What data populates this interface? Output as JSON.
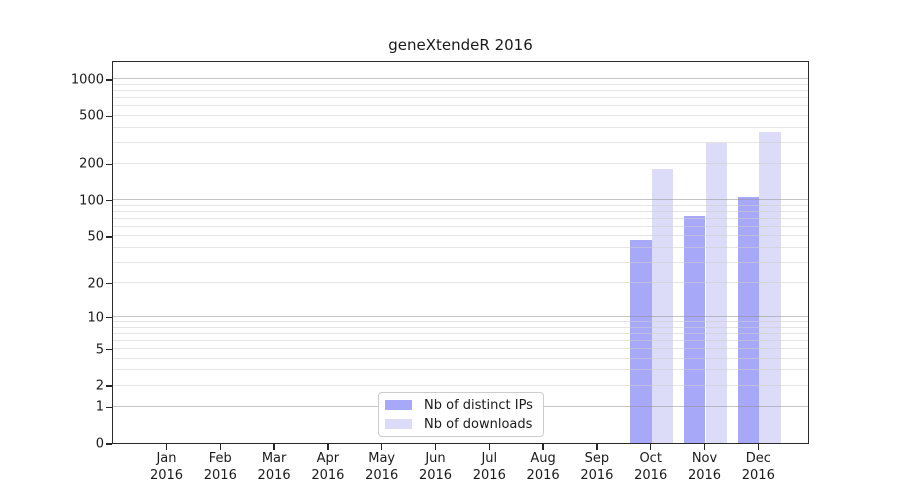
{
  "title": "geneXtendeR 2016",
  "chart_data": {
    "type": "bar",
    "title": "geneXtendeR 2016",
    "categories": [
      "Jan",
      "Feb",
      "Mar",
      "Apr",
      "May",
      "Jun",
      "Jul",
      "Aug",
      "Sep",
      "Oct",
      "Nov",
      "Dec"
    ],
    "year_label": "2016",
    "series": [
      {
        "name": "Nb of distinct IPs",
        "color": "#a8a8f8",
        "values": [
          0,
          0,
          0,
          0,
          0,
          0,
          0,
          0,
          0,
          46,
          73,
          105
        ]
      },
      {
        "name": "Nb of downloads",
        "color": "#dcdcf8",
        "values": [
          0,
          0,
          0,
          0,
          0,
          0,
          0,
          0,
          0,
          181,
          296,
          366
        ]
      }
    ],
    "y_ticks": [
      1000,
      500,
      200,
      100,
      50,
      20,
      10,
      5,
      2,
      1,
      0
    ],
    "y_scale": "log1p",
    "ylim": [
      0,
      1430
    ],
    "xlabel": "",
    "ylabel": "",
    "grid": "on",
    "grid_major_at": [
      1,
      10,
      100,
      1000
    ],
    "legend_position": "lower center"
  },
  "legend": {
    "items": [
      {
        "label": "Nb of distinct IPs",
        "color": "#a8a8f8"
      },
      {
        "label": "Nb of downloads",
        "color": "#dcdcf8"
      }
    ]
  }
}
